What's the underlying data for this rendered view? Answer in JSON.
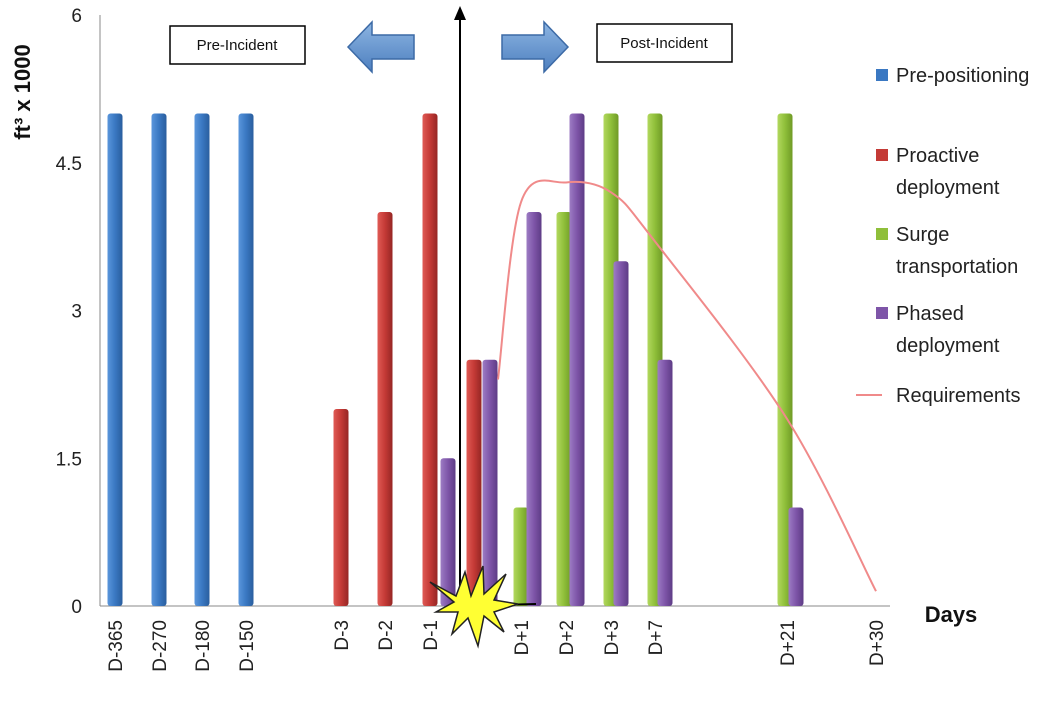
{
  "chart_data": {
    "type": "bar",
    "title": "",
    "xlabel": "Days",
    "ylabel": "ft³ x 1000",
    "ylim": [
      0,
      6
    ],
    "yticks": [
      "0",
      "1.5",
      "3",
      "4.5",
      "6"
    ],
    "x": [
      "D-365",
      "D-270",
      "D-180",
      "D-150",
      "D-3",
      "D-2",
      "D-1",
      "D+1",
      "D+2",
      "D+3",
      "D+7",
      "D+21",
      "D+30"
    ],
    "series": [
      {
        "name": "Pre-positioning",
        "color": "#3a78c2",
        "points": [
          {
            "x": "D-365",
            "y": 5
          },
          {
            "x": "D-270",
            "y": 5
          },
          {
            "x": "D-180",
            "y": 5
          },
          {
            "x": "D-150",
            "y": 5
          }
        ]
      },
      {
        "name": "Proactive deployment",
        "color": "#c43a36",
        "points": [
          {
            "x": "D-3",
            "y": 2
          },
          {
            "x": "D-2",
            "y": 4
          },
          {
            "x": "D-1",
            "y": 5
          },
          {
            "x": "D-1",
            "y": 2.5
          }
        ]
      },
      {
        "name": "Surge transportation",
        "color": "#8fbf3a",
        "points": [
          {
            "x": "D+1",
            "y": 1
          },
          {
            "x": "D+2",
            "y": 4
          },
          {
            "x": "D+3",
            "y": 5
          },
          {
            "x": "D+7",
            "y": 5
          },
          {
            "x": "D+21",
            "y": 5
          }
        ]
      },
      {
        "name": "Phased deployment",
        "color": "#7e55a8",
        "points": [
          {
            "x": "D-1",
            "y": 1.5
          },
          {
            "x": "D-1",
            "y": 2.5
          },
          {
            "x": "D+1",
            "y": 4
          },
          {
            "x": "D+2",
            "y": 5
          },
          {
            "x": "D+3",
            "y": 3.5
          },
          {
            "x": "D+7",
            "y": 2.5
          },
          {
            "x": "D+21",
            "y": 1
          }
        ]
      },
      {
        "name": "Requirements",
        "type": "line",
        "color": "#f08a8a",
        "points": [
          {
            "x": "D-1",
            "y": 2.3
          },
          {
            "x": "D+1",
            "y": 4.1
          },
          {
            "x": "D+2",
            "y": 4.3
          },
          {
            "x": "D+3",
            "y": 4.2
          },
          {
            "x": "D+7",
            "y": 3.7
          },
          {
            "x": "D+21",
            "y": 1.9
          },
          {
            "x": "D+30",
            "y": 0.15
          }
        ]
      }
    ],
    "annotations": {
      "pre_incident": "Pre-Incident",
      "post_incident": "Post-Incident"
    },
    "legend": "right",
    "grid": false
  }
}
